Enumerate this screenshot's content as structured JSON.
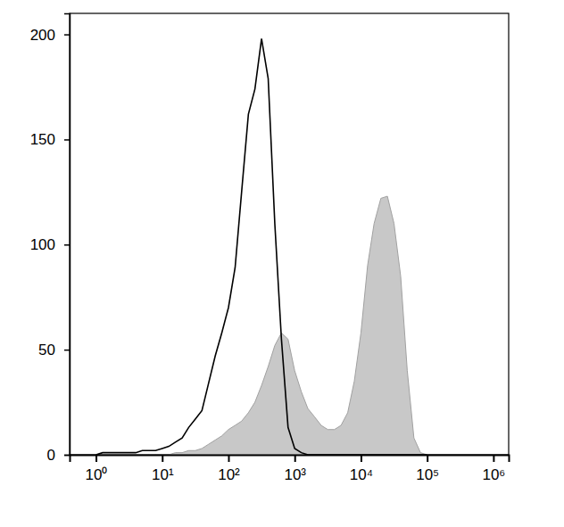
{
  "chart_data": {
    "type": "line",
    "log": "x",
    "x": [
      1,
      1.26,
      1.58,
      2,
      2.51,
      3.16,
      3.98,
      5.01,
      6.31,
      7.94,
      10,
      12.6,
      15.8,
      20,
      25.1,
      31.6,
      39.8,
      50.1,
      63.1,
      79.4,
      100,
      126,
      158,
      200,
      251,
      316,
      398,
      501,
      631,
      794,
      1000,
      1260,
      1580,
      2000,
      2510,
      3160,
      3980,
      5010,
      6310,
      7940,
      10000,
      12600,
      15800,
      20000,
      25100,
      31600,
      39800,
      50100,
      63100,
      79400,
      100000
    ],
    "series": [
      {
        "type": "area",
        "color": "#c8c8c8",
        "values": [
          0,
          0,
          0,
          0,
          0,
          0,
          0,
          0,
          0,
          0,
          0,
          0,
          1,
          1,
          2,
          2,
          3,
          5,
          7,
          9,
          12,
          14,
          16,
          20,
          25,
          33,
          42,
          52,
          58,
          55,
          40,
          30,
          22,
          18,
          14,
          12,
          12,
          14,
          20,
          35,
          58,
          90,
          110,
          122,
          123,
          110,
          85,
          40,
          8,
          1,
          0
        ]
      },
      {
        "type": "line",
        "color": "#000000",
        "values": [
          0,
          1,
          1,
          1,
          1,
          1,
          1,
          2,
          2,
          2,
          3,
          4,
          6,
          8,
          13,
          17,
          21,
          34,
          47,
          58,
          70,
          89,
          125,
          162,
          174,
          198,
          179,
          110,
          55,
          13,
          3,
          1,
          0,
          0,
          0,
          0,
          0,
          0,
          0,
          0,
          0,
          0,
          0,
          0,
          0,
          0,
          0,
          0,
          0,
          0,
          0
        ]
      }
    ],
    "xlim": [
      0.4,
      1700000
    ],
    "xticks": [
      {
        "value": 1,
        "label": "10⁰"
      },
      {
        "value": 10,
        "label": "10¹"
      },
      {
        "value": 100,
        "label": "10²"
      },
      {
        "value": 1000,
        "label": "10³"
      },
      {
        "value": 10000,
        "label": "10⁴"
      },
      {
        "value": 100000,
        "label": "10⁵"
      },
      {
        "value": 1000000,
        "label": "10⁶"
      }
    ],
    "ylim": [
      0,
      210
    ],
    "yticks": [
      0,
      50,
      100,
      150,
      200
    ]
  }
}
